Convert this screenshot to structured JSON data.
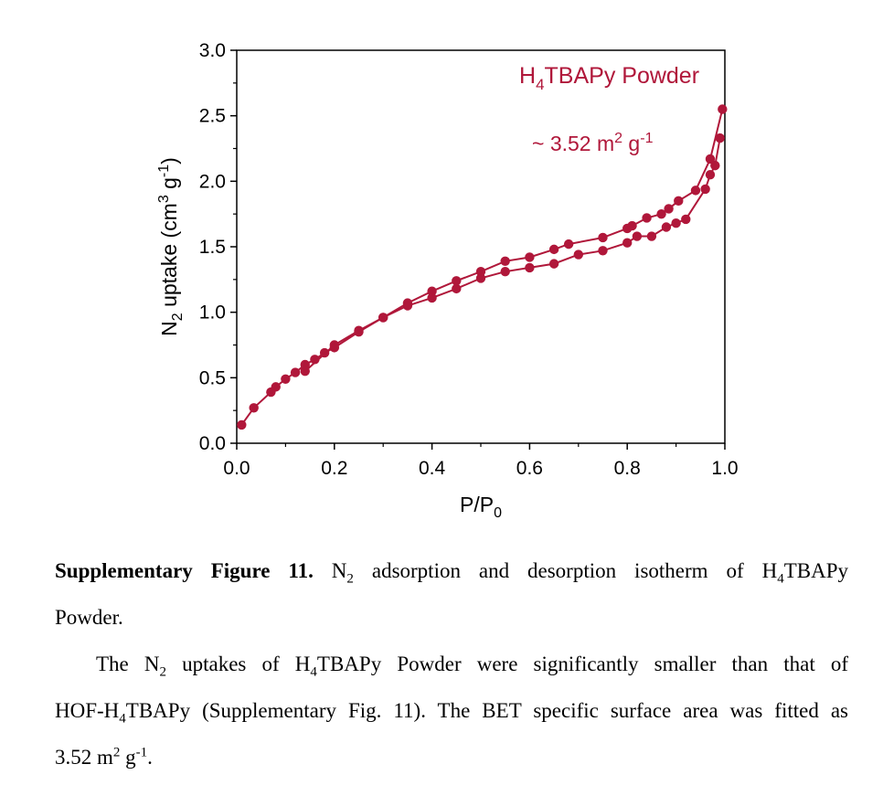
{
  "chart_data": {
    "type": "scatter",
    "xlabel_main": "P/P",
    "xlabel_sub": "0",
    "ylabel": {
      "a": "N",
      "a_sub": "2",
      "b": " uptake (cm",
      "b_sup": "3",
      "c": " g",
      "c_sup": "-1",
      "d": ")"
    },
    "xlim": [
      0.0,
      1.0
    ],
    "ylim": [
      0.0,
      3.0
    ],
    "xticks": [
      "0.0",
      "0.2",
      "0.4",
      "0.6",
      "0.8",
      "1.0"
    ],
    "yticks": [
      "0.0",
      "0.5",
      "1.0",
      "1.5",
      "2.0",
      "2.5",
      "3.0"
    ],
    "annotation_title": {
      "a": "H",
      "a_sub": "4",
      "b": "TBAPy Powder"
    },
    "annotation_area": {
      "a": "~ 3.52 m",
      "a_sup": "2",
      "b": " g",
      "b_sup": "-1"
    },
    "color": "#b0173a",
    "series": [
      {
        "x": [
          0.01,
          0.035,
          0.07,
          0.08,
          0.1,
          0.12,
          0.14,
          0.16,
          0.18,
          0.2,
          0.25,
          0.3,
          0.35,
          0.4,
          0.45,
          0.5,
          0.55,
          0.6,
          0.65,
          0.7,
          0.75,
          0.8,
          0.82,
          0.85,
          0.88,
          0.9,
          0.92,
          0.96,
          0.97,
          0.98,
          0.99
        ],
        "y": [
          0.14,
          0.27,
          0.39,
          0.43,
          0.49,
          0.54,
          0.6,
          0.64,
          0.69,
          0.73,
          0.85,
          0.96,
          1.05,
          1.11,
          1.18,
          1.26,
          1.31,
          1.34,
          1.37,
          1.44,
          1.47,
          1.53,
          1.58,
          1.58,
          1.65,
          1.68,
          1.71,
          1.94,
          2.05,
          2.12,
          2.33
        ]
      },
      {
        "x": [
          0.995,
          0.97,
          0.94,
          0.905,
          0.885,
          0.87,
          0.84,
          0.81,
          0.8,
          0.75,
          0.68,
          0.65,
          0.6,
          0.55,
          0.5,
          0.45,
          0.4,
          0.35,
          0.3,
          0.25,
          0.2,
          0.14
        ],
        "y": [
          2.55,
          2.17,
          1.93,
          1.85,
          1.79,
          1.75,
          1.72,
          1.66,
          1.64,
          1.57,
          1.52,
          1.48,
          1.42,
          1.39,
          1.31,
          1.24,
          1.16,
          1.07,
          0.96,
          0.86,
          0.75,
          0.55
        ]
      }
    ]
  },
  "caption": {
    "label": "Supplementary Figure 11.",
    "t1": " N",
    "t1_sub": "2",
    "t2": " adsorption and desorption isotherm of H",
    "t2_sub": "4",
    "t3": "TBAPy",
    "line2": "Powder."
  },
  "body": {
    "l1a": "The N",
    "l1a_sub": "2",
    "l1b": " uptakes of H",
    "l1b_sub": "4",
    "l1c": "TBAPy Powder were significantly smaller than that of",
    "l2a": "HOF-H",
    "l2a_sub": "4",
    "l2b": "TBAPy (Supplementary Fig. 11). The BET specific surface area was fitted as",
    "l3a": "3.52 m",
    "l3a_sup": "2",
    "l3b": " g",
    "l3b_sup": "-1",
    "l3c": "."
  }
}
